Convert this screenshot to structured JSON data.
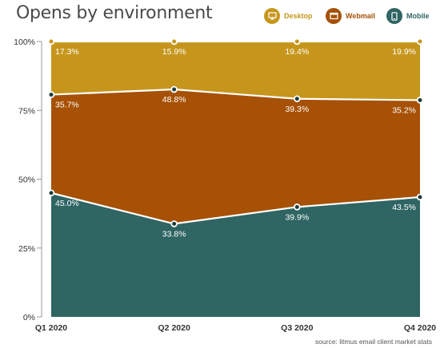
{
  "title": "Opens by environment",
  "source": "source: litmus email client market stats",
  "colors": {
    "desktop": "#C6961C",
    "webmail": "#A65106",
    "mobile": "#2F6563",
    "axis_text": "#333333",
    "line": "#ffffff"
  },
  "legend": [
    {
      "label": "Desktop",
      "icon": "monitor-icon",
      "color": "#C6961C"
    },
    {
      "label": "Webmail",
      "icon": "browser-window-icon",
      "color": "#A65106"
    },
    {
      "label": "Mobile",
      "icon": "phone-icon",
      "color": "#2F6563"
    }
  ],
  "chart_data": {
    "type": "area",
    "stacked": true,
    "title": "Opens by environment",
    "categories": [
      "Q1 2020",
      "Q2 2020",
      "Q3 2020",
      "Q4 2020"
    ],
    "ylim": [
      0,
      100
    ],
    "yticks": [
      "0%",
      "25%",
      "50%",
      "75%",
      "100%"
    ],
    "grid": false,
    "legend_position": "top-right",
    "series": [
      {
        "name": "Mobile",
        "values": [
          45.0,
          33.8,
          39.9,
          43.5
        ],
        "labels": [
          "45.0%",
          "33.8%",
          "39.9%",
          "43.5%"
        ]
      },
      {
        "name": "Webmail",
        "values": [
          35.7,
          48.8,
          39.3,
          35.2
        ],
        "labels": [
          "35.7%",
          "48.8%",
          "39.3%",
          "35.2%"
        ]
      },
      {
        "name": "Desktop",
        "values": [
          17.3,
          15.9,
          19.4,
          19.9
        ],
        "labels": [
          "17.3%",
          "15.9%",
          "19.4%",
          "19.9%"
        ]
      }
    ]
  }
}
